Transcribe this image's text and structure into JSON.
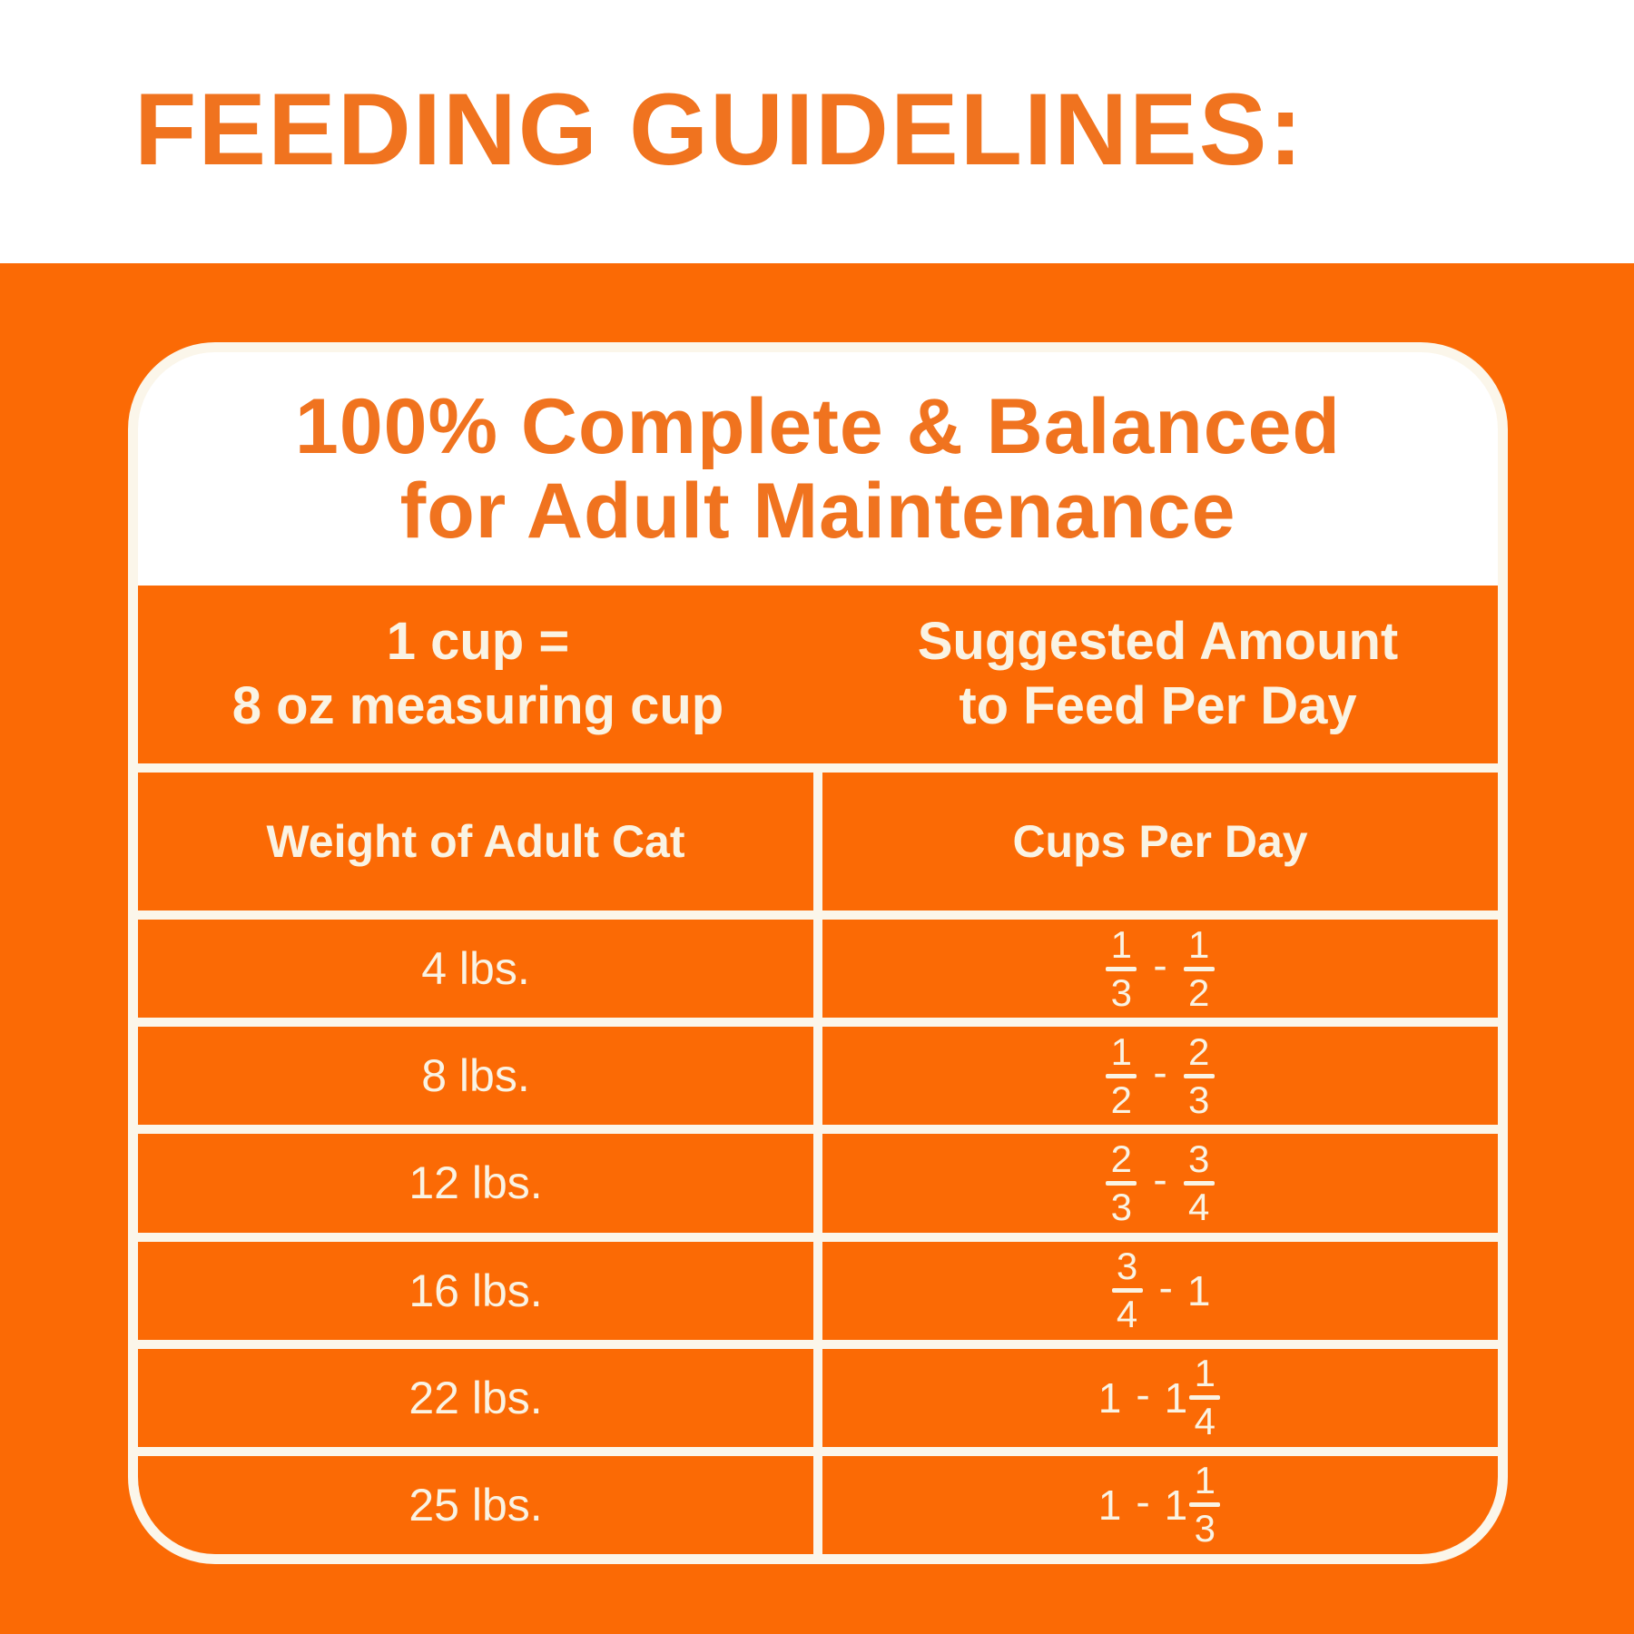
{
  "colors": {
    "background_orange": "#FB6A05",
    "heading_orange": "#F0731F",
    "table_text_cream": "#FAF3E3",
    "gridline_white": "#FBF6EA",
    "page_white": "#FFFFFF"
  },
  "title": "FEEDING GUIDELINES:",
  "card": {
    "heading_line1": "100% Complete & Balanced",
    "heading_line2": "for Adult Maintenance",
    "cup_note_line1": "1 cup =",
    "cup_note_line2": "8 oz measuring cup",
    "suggested_line1": "Suggested Amount",
    "suggested_line2": "to Feed Per Day",
    "column_left_header": "Weight of Adult Cat",
    "column_right_header": "Cups Per Day"
  },
  "chart_data": {
    "type": "table",
    "title": "Feeding Guidelines - 100% Complete & Balanced for Adult Maintenance",
    "note": "1 cup = 8 oz measuring cup; Suggested Amount to Feed Per Day",
    "columns": [
      "Weight of Adult Cat",
      "Cups Per Day"
    ],
    "rows": [
      {
        "weight": "4 lbs.",
        "cups_per_day_text": "1/3 - 1/2",
        "cups_tokens": [
          {
            "t": "frac",
            "n": "1",
            "d": "3"
          },
          {
            "t": "dash"
          },
          {
            "t": "frac",
            "n": "1",
            "d": "2"
          }
        ]
      },
      {
        "weight": "8 lbs.",
        "cups_per_day_text": "1/2 - 2/3",
        "cups_tokens": [
          {
            "t": "frac",
            "n": "1",
            "d": "2"
          },
          {
            "t": "dash"
          },
          {
            "t": "frac",
            "n": "2",
            "d": "3"
          }
        ]
      },
      {
        "weight": "12 lbs.",
        "cups_per_day_text": "2/3 - 3/4",
        "cups_tokens": [
          {
            "t": "frac",
            "n": "2",
            "d": "3"
          },
          {
            "t": "dash"
          },
          {
            "t": "frac",
            "n": "3",
            "d": "4"
          }
        ]
      },
      {
        "weight": "16 lbs.",
        "cups_per_day_text": "3/4 - 1",
        "cups_tokens": [
          {
            "t": "frac",
            "n": "3",
            "d": "4"
          },
          {
            "t": "dash"
          },
          {
            "t": "num",
            "v": "1"
          }
        ]
      },
      {
        "weight": "22 lbs.",
        "cups_per_day_text": "1 - 1 1/4",
        "cups_tokens": [
          {
            "t": "num",
            "v": "1"
          },
          {
            "t": "dash"
          },
          {
            "t": "num",
            "v": "1"
          },
          {
            "t": "frac",
            "n": "1",
            "d": "4"
          }
        ]
      },
      {
        "weight": "25 lbs.",
        "cups_per_day_text": "1 - 1 1/3",
        "cups_tokens": [
          {
            "t": "num",
            "v": "1"
          },
          {
            "t": "dash"
          },
          {
            "t": "num",
            "v": "1"
          },
          {
            "t": "frac",
            "n": "1",
            "d": "3"
          }
        ]
      }
    ]
  }
}
